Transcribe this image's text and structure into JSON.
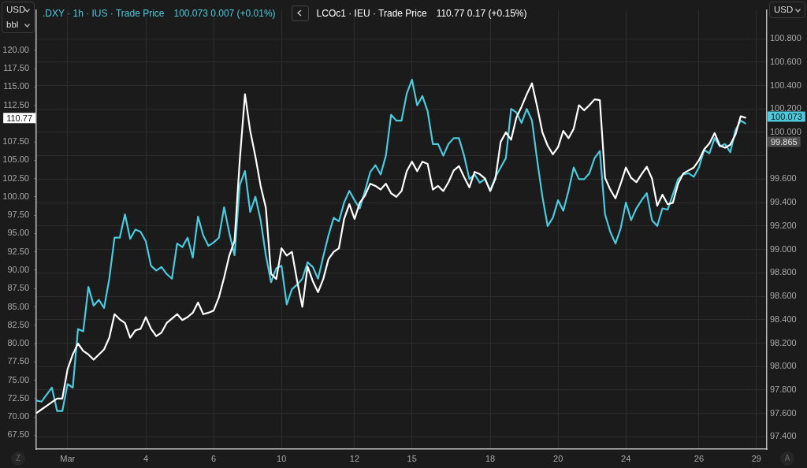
{
  "chart_data": {
    "type": "line",
    "ylabel": "USD",
    "y2label": "USD",
    "categories": [
      null,
      null,
      null,
      null,
      null,
      null,
      "Mar",
      null,
      null,
      null,
      null,
      null,
      null,
      null,
      null,
      null,
      null,
      null,
      null,
      null,
      null,
      "4",
      null,
      null,
      null,
      null,
      null,
      null,
      null,
      null,
      null,
      null,
      null,
      null,
      "6",
      null,
      null,
      null,
      null,
      null,
      null,
      null,
      null,
      null,
      null,
      null,
      null,
      "10",
      null,
      null,
      null,
      null,
      null,
      null,
      null,
      null,
      null,
      null,
      null,
      null,
      null,
      "12",
      null,
      null,
      null,
      null,
      null,
      null,
      null,
      null,
      null,
      null,
      "15",
      null,
      null,
      null,
      null,
      null,
      null,
      null,
      null,
      null,
      null,
      null,
      null,
      null,
      null,
      "18",
      null,
      null,
      null,
      null,
      null,
      null,
      null,
      null,
      null,
      null,
      null,
      null,
      "20",
      null,
      null,
      null,
      null,
      null,
      null,
      null,
      null,
      null,
      null,
      null,
      null,
      "24",
      null,
      null,
      null,
      null,
      null,
      null,
      null,
      null,
      null,
      null,
      null,
      null,
      null,
      "26",
      null,
      null,
      null,
      null,
      null,
      null,
      null,
      null,
      null,
      null,
      "29",
      null,
      null
    ],
    "series": [
      {
        "name": ".DXY · 1h · IUS · Trade Price",
        "color": "#4cc9dc",
        "axis": "y2",
        "values": [
          97.71,
          97.7,
          97.76,
          97.82,
          97.62,
          97.62,
          97.85,
          97.82,
          98.32,
          98.3,
          98.68,
          98.52,
          98.57,
          98.5,
          98.75,
          99.1,
          99.1,
          99.3,
          99.09,
          99.17,
          99.15,
          99.07,
          98.86,
          98.82,
          98.85,
          98.79,
          98.75,
          99.05,
          99.02,
          99.1,
          98.93,
          99.28,
          99.12,
          99.03,
          99.06,
          99.1,
          99.36,
          99.14,
          98.95,
          99.55,
          99.67,
          99.32,
          99.45,
          99.25,
          98.95,
          98.72,
          98.84,
          98.86,
          98.53,
          98.66,
          98.7,
          98.75,
          98.89,
          98.85,
          98.75,
          98.94,
          99.12,
          99.27,
          99.24,
          99.4,
          99.5,
          99.42,
          99.35,
          99.5,
          99.66,
          99.72,
          99.64,
          99.8,
          100.15,
          100.1,
          100.1,
          100.33,
          100.45,
          100.23,
          100.31,
          100.18,
          99.9,
          99.9,
          99.8,
          99.9,
          99.95,
          99.95,
          99.8,
          99.6,
          99.64,
          99.57,
          99.6,
          99.5,
          99.62,
          99.7,
          99.78,
          100.2,
          100.17,
          100.08,
          100.2,
          100.1,
          99.76,
          99.45,
          99.2,
          99.27,
          99.42,
          99.33,
          99.5,
          99.7,
          99.6,
          99.6,
          99.65,
          99.78,
          99.84,
          99.3,
          99.15,
          99.05,
          99.18,
          99.4,
          99.25,
          99.35,
          99.42,
          99.48,
          99.25,
          99.2,
          99.35,
          99.34,
          99.47,
          99.6,
          99.64,
          99.65,
          99.62,
          99.7,
          99.85,
          99.82,
          99.95,
          99.88,
          99.9,
          99.83,
          100.02,
          100.1,
          100.073,
          null,
          null,
          null,
          null
        ]
      },
      {
        "name": "LCOc1 · IEU · Trade Price",
        "color": "#ffffff",
        "values": [
          70.5,
          71.0,
          71.5,
          72.0,
          72.5,
          72.5,
          76.5,
          78.5,
          80.0,
          79.0,
          78.5,
          77.8,
          78.5,
          79.2,
          80.8,
          84.0,
          83.3,
          82.8,
          80.8,
          81.8,
          82.0,
          83.6,
          82.0,
          81.0,
          81.5,
          82.8,
          83.4,
          84.0,
          83.2,
          83.6,
          84.2,
          85.6,
          84.0,
          84.2,
          84.5,
          86.3,
          89.0,
          92.0,
          94.0,
          105.0,
          114.0,
          109.0,
          105.5,
          101.5,
          98.5,
          89.5,
          88.8,
          93.0,
          92.0,
          92.5,
          88.5,
          85.0,
          90.5,
          88.5,
          87.0,
          88.8,
          91.5,
          92.5,
          93.0,
          97.0,
          99.0,
          97.0,
          99.2,
          100.2,
          101.8,
          101.5,
          101.0,
          101.8,
          100.5,
          100.0,
          100.8,
          103.5,
          104.8,
          103.5,
          104.8,
          104.5,
          101.0,
          101.5,
          100.8,
          102.0,
          103.6,
          104.2,
          102.7,
          101.3,
          103.4,
          103.1,
          102.5,
          100.8,
          102.5,
          107.5,
          108.8,
          107.8,
          110.8,
          112.3,
          114.0,
          115.5,
          112.3,
          108.8,
          107.0,
          105.8,
          106.8,
          109.0,
          108.0,
          109.3,
          112.5,
          111.8,
          112.5,
          113.3,
          113.2,
          102.6,
          101.0,
          99.8,
          101.8,
          104.0,
          102.6,
          102.0,
          103.1,
          104.1,
          102.5,
          98.8,
          100.3,
          99.0,
          99.2,
          101.8,
          103.2,
          103.6,
          104.0,
          105.0,
          106.5,
          107.3,
          108.7,
          107.0,
          106.7,
          107.1,
          108.5,
          111.0,
          110.77,
          null,
          null,
          null,
          null
        ]
      }
    ],
    "ylim": [
      65.6,
      125.5
    ],
    "yticks": [
      {
        "value": 67.5,
        "label": "67.50"
      },
      {
        "value": 70,
        "label": "70.00"
      },
      {
        "value": 72.5,
        "label": "72.50"
      },
      {
        "value": 75,
        "label": "75.00"
      },
      {
        "value": 77.5,
        "label": "77.50"
      },
      {
        "value": 80,
        "label": "80.00"
      },
      {
        "value": 82.5,
        "label": "82.50"
      },
      {
        "value": 85,
        "label": "85.00"
      },
      {
        "value": 87.5,
        "label": "87.50"
      },
      {
        "value": 90,
        "label": "90.00"
      },
      {
        "value": 92.5,
        "label": "92.50"
      },
      {
        "value": 95,
        "label": "95.00"
      },
      {
        "value": 97.5,
        "label": "97.50"
      },
      {
        "value": 100,
        "label": "100.00"
      },
      {
        "value": 102.5,
        "label": "102.50"
      },
      {
        "value": 105,
        "label": "105.00"
      },
      {
        "value": 107.5,
        "label": "107.50"
      },
      {
        "value": 110,
        "label": null
      },
      {
        "value": 112.5,
        "label": "112.50"
      },
      {
        "value": 115,
        "label": "115.00"
      },
      {
        "value": 117.5,
        "label": "117.50"
      },
      {
        "value": 120,
        "label": "120.00"
      }
    ],
    "y2lim": [
      97.295,
      101.045
    ],
    "y2ticks": [
      {
        "value": 97.4,
        "label": "97.400"
      },
      {
        "value": 97.6,
        "label": "97.600"
      },
      {
        "value": 97.8,
        "label": "97.800"
      },
      {
        "value": 98,
        "label": "98.000"
      },
      {
        "value": 98.2,
        "label": "98.200"
      },
      {
        "value": 98.4,
        "label": "98.400"
      },
      {
        "value": 98.6,
        "label": "98.600"
      },
      {
        "value": 98.8,
        "label": "98.800"
      },
      {
        "value": 99,
        "label": "99.000"
      },
      {
        "value": 99.2,
        "label": "99.200"
      },
      {
        "value": 99.4,
        "label": "99.400"
      },
      {
        "value": 99.6,
        "label": "99.600"
      },
      {
        "value": 99.8,
        "label": null
      },
      {
        "value": 100,
        "label": "100.000"
      },
      {
        "value": 100.2,
        "label": "100.200"
      },
      {
        "value": 100.4,
        "label": "100.400"
      },
      {
        "value": 100.6,
        "label": "100.600"
      },
      {
        "value": 100.8,
        "label": "100.800"
      }
    ],
    "grid": true,
    "legend": "top left",
    "annotations": [
      "100.073 0.007 (+0.01%)",
      "110.77 0.17 (+0.15%)",
      "bbl",
      "Z",
      "A",
      {
        "text": "110.77",
        "y": 110.77
      },
      "100.073",
      "99.865"
    ]
  }
}
